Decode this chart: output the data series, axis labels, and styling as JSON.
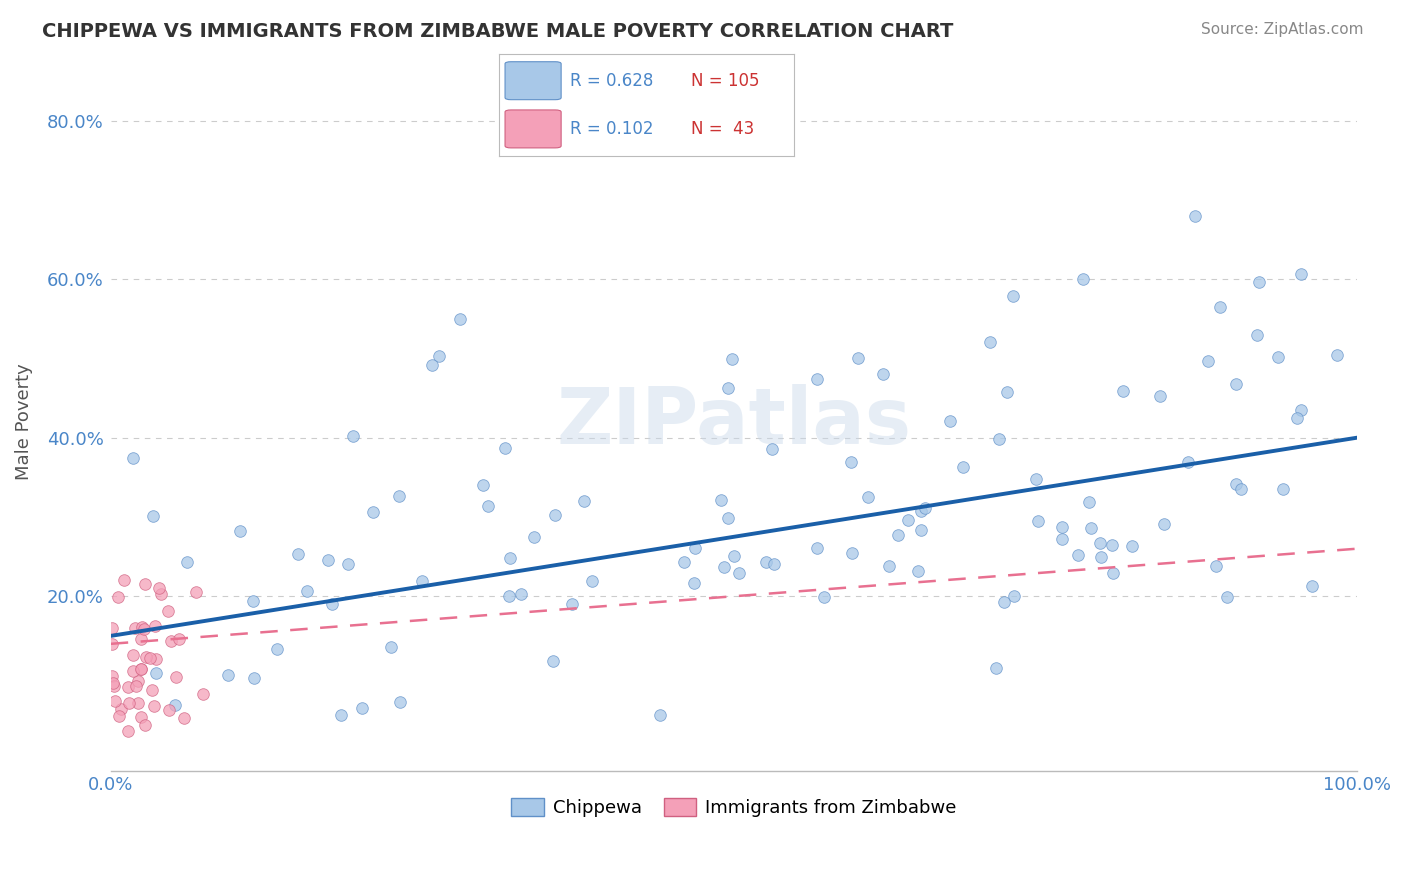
{
  "title": "CHIPPEWA VS IMMIGRANTS FROM ZIMBABWE MALE POVERTY CORRELATION CHART",
  "source_text": "Source: ZipAtlas.com",
  "ylabel": "Male Poverty",
  "xlim": [
    0.0,
    1.0
  ],
  "ylim": [
    -0.02,
    0.86
  ],
  "xtick_positions": [
    0.0,
    1.0
  ],
  "xtick_labels": [
    "0.0%",
    "100.0%"
  ],
  "ytick_values": [
    0.2,
    0.4,
    0.6,
    0.8
  ],
  "ytick_labels": [
    "20.0%",
    "40.0%",
    "60.0%",
    "80.0%"
  ],
  "chippewa_color": "#a8c8e8",
  "zimbabwe_color": "#f4a0b8",
  "chippewa_line_color": "#1a5fa8",
  "zimbabwe_line_color": "#e87090",
  "chippewa_R": 0.628,
  "chippewa_N": 105,
  "zimbabwe_R": 0.102,
  "zimbabwe_N": 43,
  "background_color": "#ffffff",
  "grid_color": "#cccccc",
  "watermark": "ZIPatlas",
  "title_color": "#333333",
  "source_color": "#888888",
  "axis_color": "#4a86c8",
  "ylabel_color": "#555555"
}
